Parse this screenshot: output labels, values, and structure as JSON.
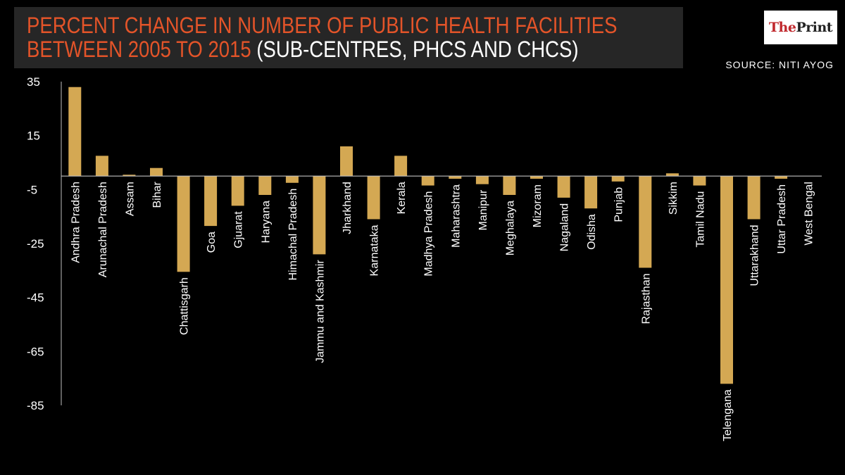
{
  "header": {
    "title_line1": "PERCENT CHANGE IN NUMBER OF PUBLIC HEALTH FACILITIES",
    "title_line2_highlight": "BETWEEN 2005 TO 2015",
    "title_line2_rest": " (SUB-CENTRES, PHCS AND CHCS)",
    "source": "SOURCE: NITI AYOG"
  },
  "logo": {
    "part1": "The",
    "part2": "Print"
  },
  "colors": {
    "title_accent": "#e35429",
    "title_text": "#ffffff",
    "bar": "#d4a853",
    "logo_red": "#c0282d",
    "logo_dark": "#222222",
    "axis_line": "#bfbfbf",
    "label_text": "#ffffff"
  },
  "chart_data": {
    "type": "bar",
    "categories": [
      "Andhra Pradesh",
      "Arunachal Pradesh",
      "Assam",
      "Bihar",
      "Chattisgarh",
      "Goa",
      "Gjuarat",
      "Haryana",
      "Himachal Pradesh",
      "Jammu and Kashmir",
      "Jharkhand",
      "Karnataka",
      "Kerala",
      "Madhya Pradesh",
      "Maharashtra",
      "Manipur",
      "Meghalaya",
      "Mizoram",
      "Nagaland",
      "Odisha",
      "Punjab",
      "Rajasthan",
      "Sikkim",
      "Tamil Nadu",
      "Telengana",
      "Uttarakhand",
      "Uttar Pradesh",
      "West Bengal"
    ],
    "values": [
      33,
      7.5,
      0.5,
      3,
      -35.5,
      -18.5,
      -11,
      -7,
      -2.5,
      -29,
      11,
      -16,
      7.5,
      -3.5,
      -1,
      -3,
      -7,
      -1,
      -8,
      -12,
      -2,
      -34,
      1,
      -3.5,
      -77,
      -16,
      -1,
      0
    ],
    "yticks": [
      35,
      15,
      -5,
      -25,
      -45,
      -65,
      -85
    ],
    "ylim": [
      -85,
      35
    ],
    "xlabel": "",
    "ylabel": "",
    "grid": false,
    "legend": "none"
  }
}
